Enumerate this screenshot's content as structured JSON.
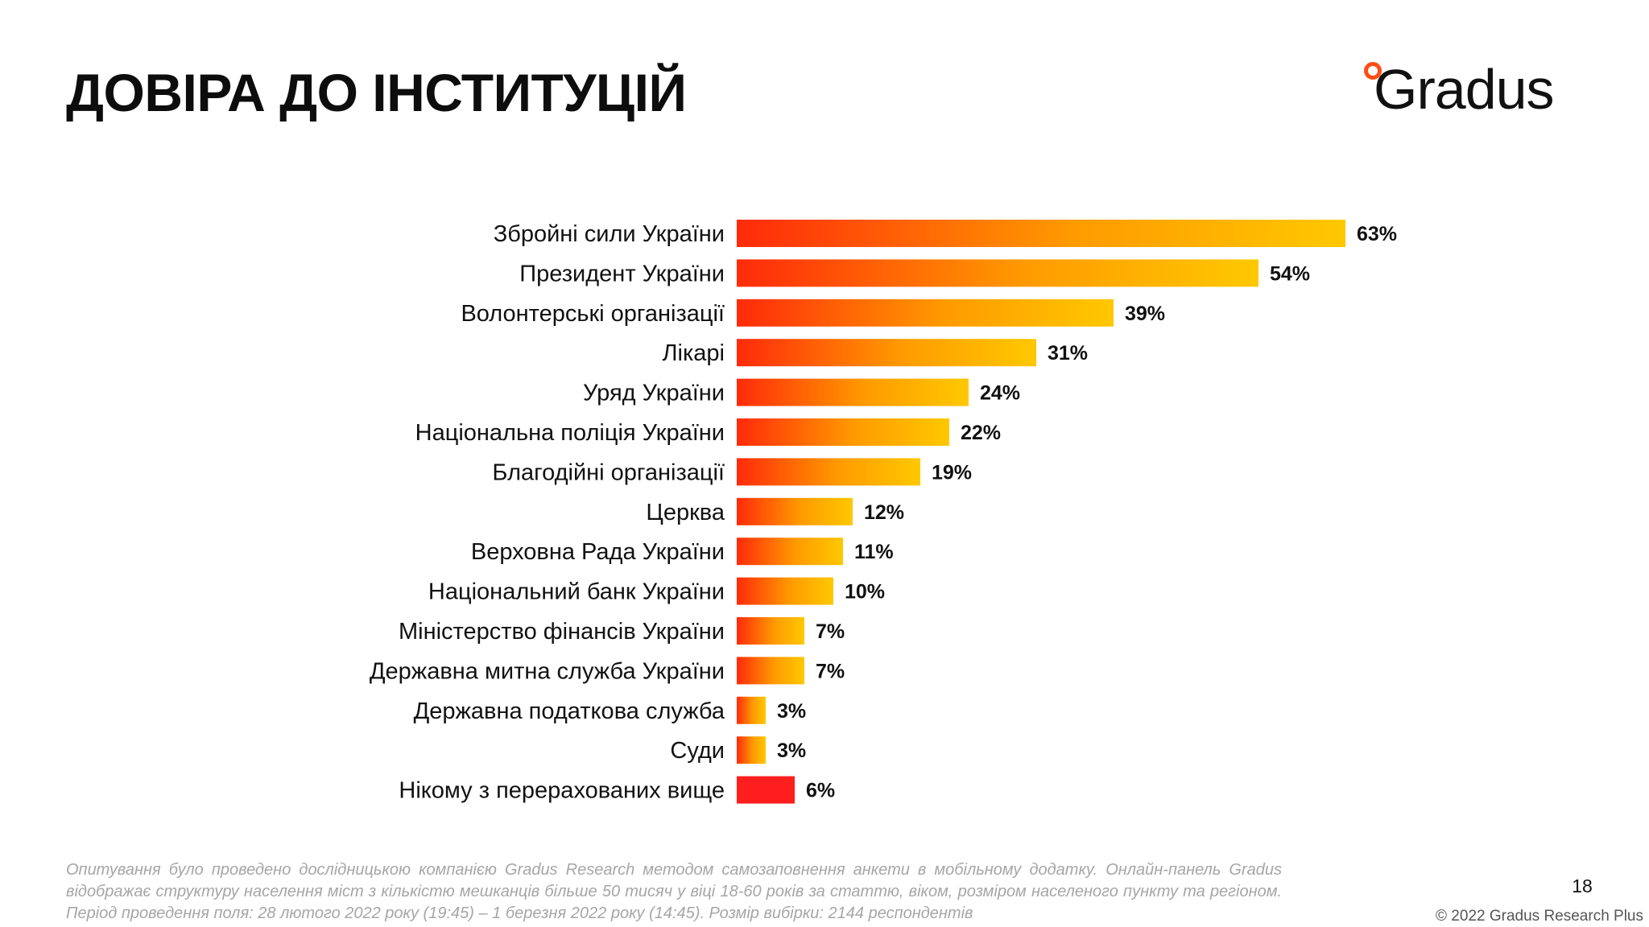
{
  "header": {
    "title": "ДОВІРА ДО ІНСТИТУЦІЙ",
    "logo_text": "Gradus",
    "logo_dot_color": "#ff4d14"
  },
  "chart_data": {
    "type": "bar",
    "orientation": "horizontal",
    "categories": [
      "Збройні сили України",
      "Президент України",
      "Волонтерські організації",
      "Лікарі",
      "Уряд України",
      "Національна поліція України",
      "Благодійні організації",
      "Церква",
      "Верховна Рада України",
      "Національний банк України",
      "Міністерство фінансів України",
      "Державна митна служба України",
      "Державна податкова служба",
      "Суди",
      "Нікому з перерахованих вище"
    ],
    "values": [
      63,
      54,
      39,
      31,
      24,
      22,
      19,
      12,
      11,
      10,
      7,
      7,
      3,
      3,
      6
    ],
    "value_labels": [
      "63%",
      "54%",
      "39%",
      "31%",
      "24%",
      "22%",
      "19%",
      "12%",
      "11%",
      "10%",
      "7%",
      "7%",
      "3%",
      "3%",
      "6%"
    ],
    "unit": "%",
    "gradient_colors": [
      "#ff2a0a",
      "#ff9a00",
      "#ffc800"
    ],
    "special_bar_color": "#ff1e1e",
    "xlim": [
      0,
      63
    ],
    "grid": false,
    "legend": false
  },
  "footer": {
    "footnote": "Опитування було проведено дослідницькою компанією Gradus Research методом самозаповнення анкети в мобільному додатку. Онлайн-панель Gradus відображає структуру населення міст з кількістю мешканців більше 50 тисяч у віці 18-60 років за статтю, віком, розміром населеного пункту та регіоном. Період проведення поля: 28 лютого 2022 року (19:45) – 1 березня 2022 року (14:45). Розмір вибірки: 2144 респондентів",
    "page_number": "18",
    "copyright": "© 2022 Gradus Research Plus"
  }
}
